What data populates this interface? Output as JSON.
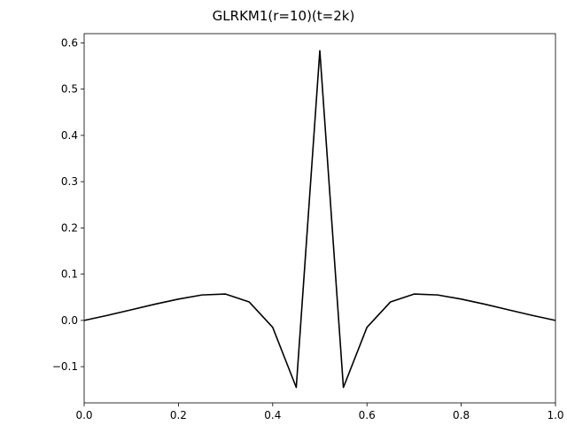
{
  "chart_data": {
    "type": "line",
    "title": "GLRKM1(r=10)(t=2k)",
    "xlabel": "",
    "ylabel": "",
    "xlim": [
      0.0,
      1.0
    ],
    "ylim": [
      -0.1783,
      0.62
    ],
    "x_ticks": [
      0.0,
      0.2,
      0.4,
      0.6,
      0.8,
      1.0
    ],
    "x_tick_labels": [
      "0.0",
      "0.2",
      "0.4",
      "0.6",
      "0.8",
      "1.0"
    ],
    "y_ticks": [
      -0.1,
      0.0,
      0.1,
      0.2,
      0.3,
      0.4,
      0.5,
      0.6
    ],
    "y_tick_labels": [
      "−0.1",
      "0.0",
      "0.1",
      "0.2",
      "0.3",
      "0.4",
      "0.5",
      "0.6"
    ],
    "grid": false,
    "series": [
      {
        "color": "#000000",
        "x": [
          0.0,
          0.05,
          0.1,
          0.15,
          0.2,
          0.25,
          0.3,
          0.35,
          0.4,
          0.45,
          0.5,
          0.55,
          0.6,
          0.65,
          0.7,
          0.75,
          0.8,
          0.85,
          0.9,
          0.95,
          1.0
        ],
        "y": [
          0.0,
          0.011,
          0.023,
          0.035,
          0.046,
          0.055,
          0.057,
          0.04,
          -0.015,
          -0.145,
          0.583,
          -0.145,
          -0.015,
          0.04,
          0.057,
          0.055,
          0.046,
          0.035,
          0.023,
          0.011,
          0.0
        ]
      }
    ]
  }
}
